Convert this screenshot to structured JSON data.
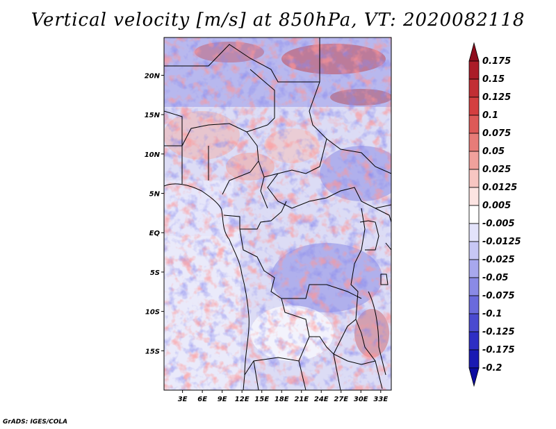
{
  "title": "Vertical velocity [m/s] at 850hPa, VT: 2020082118",
  "credit": "GrADS: IGES/COLA",
  "chart_data": {
    "type": "heatmap",
    "title": "Vertical velocity [m/s] at 850hPa, VT: 2020082118",
    "variable": "Vertical velocity",
    "units": "m/s",
    "level": "850hPa",
    "valid_time": "2020082118",
    "xlabel": "",
    "ylabel": "",
    "x_ticks": [
      "3E",
      "6E",
      "9E",
      "12E",
      "15E",
      "18E",
      "21E",
      "24E",
      "27E",
      "30E",
      "33E"
    ],
    "x_tick_values": [
      3,
      6,
      9,
      12,
      15,
      18,
      21,
      24,
      27,
      30,
      33
    ],
    "y_ticks": [
      "20N",
      "15N",
      "10N",
      "5N",
      "EQ",
      "5S",
      "10S",
      "15S"
    ],
    "y_tick_values": [
      20,
      15,
      10,
      5,
      0,
      -5,
      -10,
      -15
    ],
    "lon_range": [
      0.2,
      34.6
    ],
    "lat_range": [
      -20,
      24.8
    ],
    "colorbar": {
      "labels": [
        "0.175",
        "0.15",
        "0.125",
        "0.1",
        "0.075",
        "0.05",
        "0.025",
        "0.0125",
        "0.005",
        "-0.005",
        "-0.0125",
        "-0.025",
        "-0.05",
        "-0.075",
        "-0.1",
        "-0.125",
        "-0.175",
        "-0.2"
      ],
      "colors": [
        "#8e0d1c",
        "#ab1c28",
        "#c22e34",
        "#d43f40",
        "#dd5a58",
        "#e77c78",
        "#f0a19c",
        "#f7c6c2",
        "#fce4e2",
        "#ffffff",
        "#e3e3fb",
        "#c7c7f5",
        "#a8a8ee",
        "#8a8ae6",
        "#6a6adc",
        "#4a4ad0",
        "#2e2ec4",
        "#1a1ab3",
        "#0c0ca0"
      ]
    }
  }
}
